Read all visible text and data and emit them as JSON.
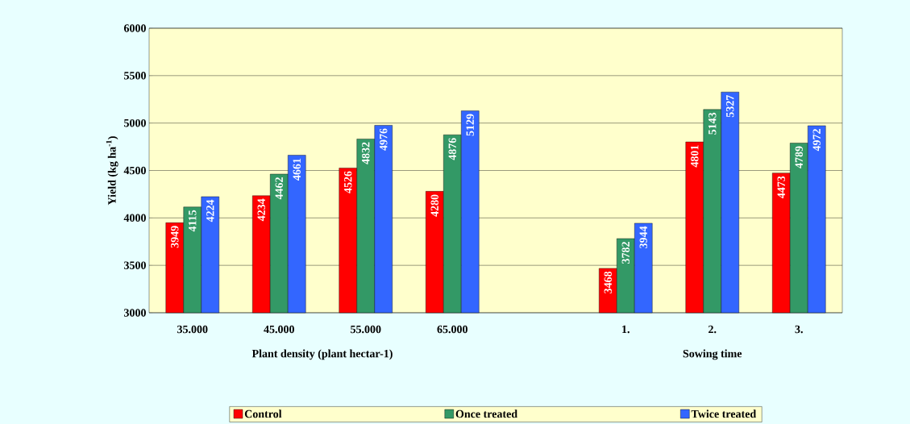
{
  "chart_data": {
    "type": "bar",
    "ylabel": "Yield (kg ha$^{-1}$)",
    "categories": [
      "35.000",
      "45.000",
      "55.000",
      "65.000",
      null,
      "1.",
      "2.",
      "3."
    ],
    "series": [
      {
        "name": "Control",
        "color": "#ff0000",
        "values": [
          3949,
          4234,
          4526,
          4280,
          null,
          3468,
          4801,
          4473
        ]
      },
      {
        "name": "Once treated",
        "color": "#339966",
        "values": [
          4115,
          4462,
          4832,
          4876,
          null,
          3782,
          5143,
          4789
        ]
      },
      {
        "name": "Twice treated",
        "color": "#3366ff",
        "values": [
          4224,
          4661,
          4976,
          5129,
          null,
          3944,
          5327,
          4972
        ]
      }
    ],
    "ylim": [
      3000,
      6000
    ],
    "yticks": [
      3000,
      3500,
      4000,
      4500,
      5000,
      5500,
      6000
    ],
    "grid": "y",
    "legend": "bottom",
    "data_labels": true,
    "annotations": [
      "Plant density (plant hectar-1)",
      "Sowing time"
    ]
  }
}
